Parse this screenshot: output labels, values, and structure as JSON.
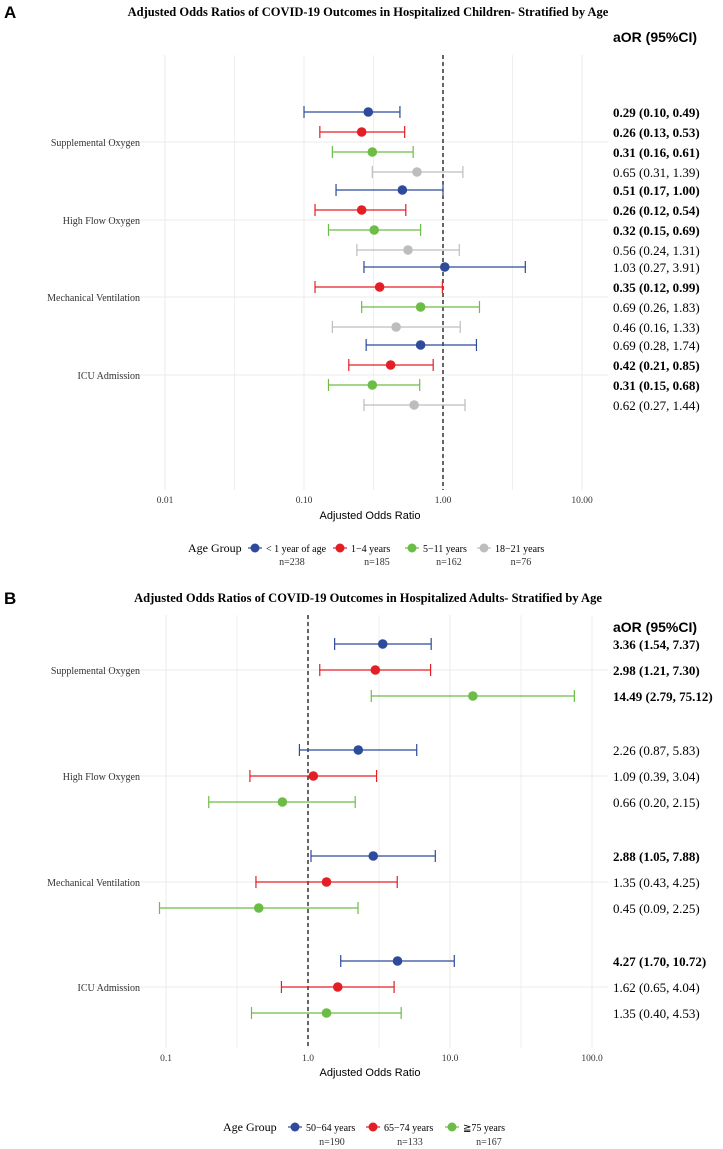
{
  "chart_data": [
    {
      "type": "forest",
      "panel_label": "A",
      "title": "Adjusted Odds Ratios of COVID-19 Outcomes in Hospitalized Children- Stratified by Age",
      "xlabel": "Adjusted Odds Ratio",
      "x_scale": "log",
      "xlim": [
        0.005,
        15
      ],
      "ticks": [
        0.01,
        0.1,
        1,
        10
      ],
      "tick_labels": [
        "0.01",
        "0.10",
        "1.00",
        "10.00"
      ],
      "reference_line": 1,
      "column_header": "aOR (95%CI)",
      "legend_title": "Age Group",
      "legend_placement": "bottom",
      "series": [
        {
          "name": "< 1 year of age",
          "n": "n=238",
          "color": "#2E4A9A"
        },
        {
          "name": "1−4 years",
          "n": "n=185",
          "color": "#E31E24"
        },
        {
          "name": "5−11 years",
          "n": "n=162",
          "color": "#6CBD45"
        },
        {
          "name": "18−21 years",
          "n": "n=76",
          "color": "#BDBDBD"
        }
      ],
      "groups": [
        {
          "label": "Supplemental Oxygen",
          "rows": [
            {
              "or": 0.29,
              "lo": 0.1,
              "hi": 0.49,
              "text": "0.29 (0.10, 0.49)",
              "bold": true
            },
            {
              "or": 0.26,
              "lo": 0.13,
              "hi": 0.53,
              "text": "0.26 (0.13, 0.53)",
              "bold": true
            },
            {
              "or": 0.31,
              "lo": 0.16,
              "hi": 0.61,
              "text": "0.31 (0.16, 0.61)",
              "bold": true
            },
            {
              "or": 0.65,
              "lo": 0.31,
              "hi": 1.39,
              "text": "0.65 (0.31, 1.39)",
              "bold": false
            }
          ]
        },
        {
          "label": "High Flow Oxygen",
          "rows": [
            {
              "or": 0.51,
              "lo": 0.17,
              "hi": 1.0,
              "text": "0.51 (0.17, 1.00)",
              "bold": true
            },
            {
              "or": 0.26,
              "lo": 0.12,
              "hi": 0.54,
              "text": "0.26 (0.12, 0.54)",
              "bold": true
            },
            {
              "or": 0.32,
              "lo": 0.15,
              "hi": 0.69,
              "text": "0.32 (0.15, 0.69)",
              "bold": true
            },
            {
              "or": 0.56,
              "lo": 0.24,
              "hi": 1.31,
              "text": "0.56 (0.24, 1.31)",
              "bold": false
            }
          ]
        },
        {
          "label": "Mechanical Ventilation",
          "rows": [
            {
              "or": 1.03,
              "lo": 0.27,
              "hi": 3.91,
              "text": "1.03 (0.27, 3.91)",
              "bold": false
            },
            {
              "or": 0.35,
              "lo": 0.12,
              "hi": 0.99,
              "text": "0.35 (0.12, 0.99)",
              "bold": true
            },
            {
              "or": 0.69,
              "lo": 0.26,
              "hi": 1.83,
              "text": "0.69 (0.26, 1.83)",
              "bold": false
            },
            {
              "or": 0.46,
              "lo": 0.16,
              "hi": 1.33,
              "text": "0.46 (0.16, 1.33)",
              "bold": false
            }
          ]
        },
        {
          "label": "ICU Admission",
          "rows": [
            {
              "or": 0.69,
              "lo": 0.28,
              "hi": 1.74,
              "text": "0.69 (0.28, 1.74)",
              "bold": false
            },
            {
              "or": 0.42,
              "lo": 0.21,
              "hi": 0.85,
              "text": "0.42 (0.21, 0.85)",
              "bold": true
            },
            {
              "or": 0.31,
              "lo": 0.15,
              "hi": 0.68,
              "text": "0.31 (0.15, 0.68)",
              "bold": true
            },
            {
              "or": 0.62,
              "lo": 0.27,
              "hi": 1.44,
              "text": "0.62 (0.27, 1.44)",
              "bold": false
            }
          ]
        }
      ]
    },
    {
      "type": "forest",
      "panel_label": "B",
      "title": "Adjusted Odds Ratios of COVID-19 Outcomes in Hospitalized Adults- Stratified by Age",
      "xlabel": "Adjusted Odds Ratio",
      "x_scale": "log",
      "xlim": [
        0.05,
        150
      ],
      "ticks": [
        0.1,
        1,
        10,
        100
      ],
      "tick_labels": [
        "0.1",
        "1.0",
        "10.0",
        "100.0"
      ],
      "reference_line": 1,
      "column_header": "aOR (95%CI)",
      "legend_title": "Age Group",
      "legend_placement": "bottom",
      "series": [
        {
          "name": "50−64 years",
          "n": "n=190",
          "color": "#2E4A9A"
        },
        {
          "name": "65−74 years",
          "n": "n=133",
          "color": "#E31E24"
        },
        {
          "name": "≧75 years",
          "n": "n=167",
          "color": "#6CBD45"
        }
      ],
      "groups": [
        {
          "label": "Supplemental Oxygen",
          "rows": [
            {
              "or": 3.36,
              "lo": 1.54,
              "hi": 7.37,
              "text": "3.36 (1.54, 7.37)",
              "bold": true
            },
            {
              "or": 2.98,
              "lo": 1.21,
              "hi": 7.3,
              "text": "2.98 (1.21, 7.30)",
              "bold": true
            },
            {
              "or": 14.49,
              "lo": 2.79,
              "hi": 75.12,
              "text": "14.49 (2.79, 75.12)",
              "bold": true
            }
          ]
        },
        {
          "label": "High Flow Oxygen",
          "rows": [
            {
              "or": 2.26,
              "lo": 0.87,
              "hi": 5.83,
              "text": "2.26 (0.87, 5.83)",
              "bold": false
            },
            {
              "or": 1.09,
              "lo": 0.39,
              "hi": 3.04,
              "text": "1.09 (0.39, 3.04)",
              "bold": false
            },
            {
              "or": 0.66,
              "lo": 0.2,
              "hi": 2.15,
              "text": "0.66 (0.20, 2.15)",
              "bold": false
            }
          ]
        },
        {
          "label": "Mechanical Ventilation",
          "rows": [
            {
              "or": 2.88,
              "lo": 1.05,
              "hi": 7.88,
              "text": "2.88 (1.05, 7.88)",
              "bold": true
            },
            {
              "or": 1.35,
              "lo": 0.43,
              "hi": 4.25,
              "text": "1.35 (0.43, 4.25)",
              "bold": false
            },
            {
              "or": 0.45,
              "lo": 0.09,
              "hi": 2.25,
              "text": "0.45 (0.09, 2.25)",
              "bold": false
            }
          ]
        },
        {
          "label": "ICU Admission",
          "rows": [
            {
              "or": 4.27,
              "lo": 1.7,
              "hi": 10.72,
              "text": "4.27 (1.70, 10.72)",
              "bold": true
            },
            {
              "or": 1.62,
              "lo": 0.65,
              "hi": 4.04,
              "text": "1.62 (0.65, 4.04)",
              "bold": false
            },
            {
              "or": 1.35,
              "lo": 0.4,
              "hi": 4.53,
              "text": "1.35 (0.40, 4.53)",
              "bold": false
            }
          ]
        }
      ]
    }
  ]
}
